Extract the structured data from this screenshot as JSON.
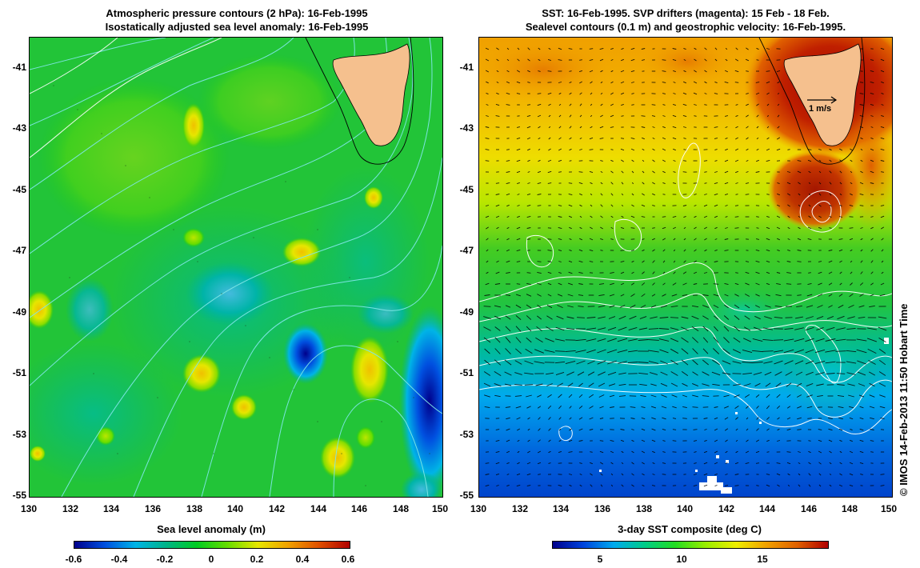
{
  "left_panel": {
    "title_line1": "Atmospheric pressure contours (2 hPa): 16-Feb-1995",
    "title_line2": "Isostatically adjusted sea level anomaly: 16-Feb-1995",
    "lat_ticks": [
      "-41",
      "-43",
      "-45",
      "-47",
      "-49",
      "-51",
      "-53",
      "-55"
    ],
    "lon_ticks": [
      "130",
      "132",
      "134",
      "136",
      "138",
      "140",
      "142",
      "144",
      "146",
      "148",
      "150"
    ],
    "colorbar": {
      "label": "Sea level anomaly (m)",
      "ticks": [
        "-0.6",
        "-0.4",
        "-0.2",
        "0",
        "0.2",
        "0.4",
        "0.6"
      ]
    }
  },
  "right_panel": {
    "title_line1": "SST: 16-Feb-1995. SVP drifters (magenta): 15 Feb - 18 Feb.",
    "title_line2": "Sealevel contours (0.1 m) and geostrophic velocity: 16-Feb-1995.",
    "velocity_scale_label": "1 m/s",
    "lat_ticks": [
      "-41",
      "-43",
      "-45",
      "-47",
      "-49",
      "-51",
      "-53",
      "-55"
    ],
    "lon_ticks": [
      "130",
      "132",
      "134",
      "136",
      "138",
      "140",
      "142",
      "144",
      "146",
      "148",
      "150"
    ],
    "colorbar": {
      "label": "3-day SST composite (deg C)",
      "ticks": [
        "5",
        "10",
        "15"
      ]
    }
  },
  "copyright": "© IMOS 14-Feb-2013 11:50 Hobart Time",
  "colors": {
    "land": "#f5c08e",
    "sla_scale": [
      "#00008b",
      "#0050e0",
      "#00b4e6",
      "#00b488",
      "#00cc22",
      "#66dd00",
      "#e6e600",
      "#f0a000",
      "#e05000",
      "#b00000"
    ],
    "sst_scale": [
      "#00008b",
      "#0044dd",
      "#00aaee",
      "#00cc88",
      "#22dd22",
      "#99ee00",
      "#eeee00",
      "#f0a000",
      "#e06000",
      "#b00000"
    ]
  }
}
